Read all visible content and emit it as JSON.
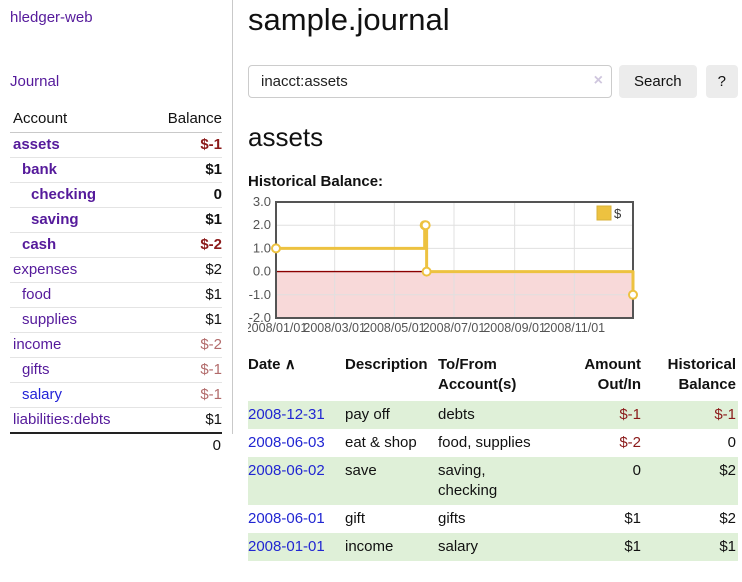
{
  "colors": {
    "purple": "#551a9b",
    "blue": "#2323d7",
    "date_blue": "#2126d2",
    "neg_strong": "#8b1a1a",
    "neg_muted": "#b26b6b",
    "row_highlight": "#dff0d8",
    "series": "#edc240",
    "negative_region": "#f8d9d9",
    "zero_line": "#8b0000",
    "grid": "#e0e0e0",
    "chart_border": "#545454",
    "axis_text": "#545454"
  },
  "sidebar": {
    "app_title": "hledger-web",
    "journal_link": "Journal",
    "table_headers": {
      "account": "Account",
      "balance": "Balance"
    },
    "accounts": [
      {
        "name": "assets",
        "indent": 1,
        "bold": true,
        "balance": "$-1",
        "tone": "neg-strong"
      },
      {
        "name": "bank",
        "indent": 2,
        "bold": true,
        "balance": "$1",
        "tone": ""
      },
      {
        "name": "checking",
        "indent": 3,
        "bold": true,
        "balance": "0",
        "tone": ""
      },
      {
        "name": "saving",
        "indent": 3,
        "bold": true,
        "balance": "$1",
        "tone": ""
      },
      {
        "name": "cash",
        "indent": 2,
        "bold": true,
        "balance": "$-2",
        "tone": "neg-strong"
      },
      {
        "name": "expenses",
        "indent": 1,
        "bold": false,
        "balance": "$2",
        "tone": ""
      },
      {
        "name": "food",
        "indent": 2,
        "bold": false,
        "balance": "$1",
        "tone": ""
      },
      {
        "name": "supplies",
        "indent": 2,
        "bold": false,
        "balance": "$1",
        "tone": ""
      },
      {
        "name": "income",
        "indent": 1,
        "bold": false,
        "balance": "$-2",
        "tone": "neg-muted"
      },
      {
        "name": "gifts",
        "indent": 2,
        "bold": false,
        "balance": "$-1",
        "tone": "neg-muted"
      },
      {
        "name": "salary",
        "indent": 2,
        "bold": false,
        "balance": "$-1",
        "tone": "neg-muted",
        "blue": true
      },
      {
        "name": "liabilities:debts",
        "indent": 1,
        "bold": false,
        "balance": "$1",
        "tone": ""
      }
    ],
    "total": "0"
  },
  "header": {
    "title": "sample.journal"
  },
  "search": {
    "value": "inacct:assets",
    "clear_icon": "×",
    "search_button": "Search",
    "help_button": "?"
  },
  "account_page": {
    "heading": "assets",
    "chart_label": "Historical Balance:"
  },
  "chart_data": {
    "type": "line",
    "step": true,
    "title": "Historical Balance:",
    "legend": [
      {
        "name": "$",
        "color": "#edc240"
      }
    ],
    "legend_position": "top-right",
    "xlim": [
      "2008-01-01",
      "2008-12-31"
    ],
    "ylim": [
      -2,
      3
    ],
    "yticks": [
      3.0,
      2.0,
      1.0,
      0.0,
      -1.0,
      -2.0
    ],
    "xticks": [
      "2008-01-01",
      "2008-03-01",
      "2008-05-01",
      "2008-07-01",
      "2008-09-01",
      "2008-11-01"
    ],
    "xtick_labels": [
      "2008/01/01",
      "2008/03/01",
      "2008/05/01",
      "2008/07/01",
      "2008/09/01",
      "2008/11/01"
    ],
    "grid": true,
    "negative_region_shaded": true,
    "series": [
      {
        "name": "$",
        "points": [
          [
            "2008-01-01",
            1
          ],
          [
            "2008-06-01",
            2
          ],
          [
            "2008-06-02",
            2
          ],
          [
            "2008-06-03",
            0
          ],
          [
            "2008-12-31",
            -1
          ]
        ]
      }
    ]
  },
  "register": {
    "headers": [
      "Date",
      "Description",
      "To/From Account(s)",
      "Amount Out/In",
      "Historical Balance"
    ],
    "sort_indicator": "∧",
    "rows": [
      {
        "date": "2008-12-31",
        "description": "pay off",
        "accounts": "debts",
        "amount": "$-1",
        "balance": "$-1",
        "amount_neg": true,
        "balance_neg": true,
        "highlight": true
      },
      {
        "date": "2008-06-03",
        "description": "eat & shop",
        "accounts": "food, supplies",
        "amount": "$-2",
        "balance": "0",
        "amount_neg": true,
        "balance_neg": false,
        "highlight": false
      },
      {
        "date": "2008-06-02",
        "description": "save",
        "accounts": "saving, checking",
        "amount": "0",
        "balance": "$2",
        "amount_neg": false,
        "balance_neg": false,
        "highlight": true
      },
      {
        "date": "2008-06-01",
        "description": "gift",
        "accounts": "gifts",
        "amount": "$1",
        "balance": "$2",
        "amount_neg": false,
        "balance_neg": false,
        "highlight": false
      },
      {
        "date": "2008-01-01",
        "description": "income",
        "accounts": "salary",
        "amount": "$1",
        "balance": "$1",
        "amount_neg": false,
        "balance_neg": false,
        "highlight": true
      }
    ]
  }
}
